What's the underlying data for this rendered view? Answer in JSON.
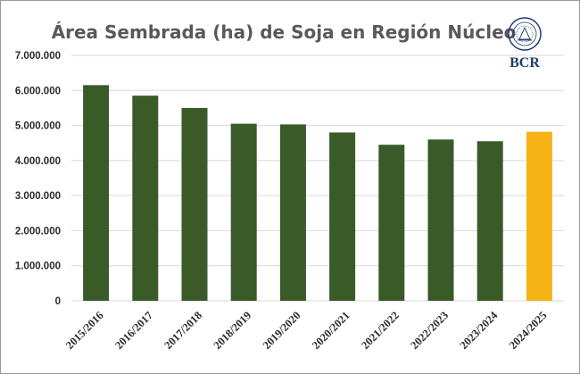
{
  "colors": {
    "bar": "#3a5a28",
    "highlight": "#f5b315",
    "logo": "#1f3b73"
  },
  "logo": {
    "text": "BCR",
    "icon": "bcr-seal-icon"
  },
  "chart_data": {
    "type": "bar",
    "title": "Área Sembrada (ha) de Soja en Región Núcleo",
    "xlabel": "",
    "ylabel": "",
    "ylim": [
      0,
      7000000
    ],
    "grid": true,
    "legend": "none",
    "yticks": [
      {
        "value": 0,
        "label": "0"
      },
      {
        "value": 1000000,
        "label": "1.000.000"
      },
      {
        "value": 2000000,
        "label": "2.000.000"
      },
      {
        "value": 3000000,
        "label": "3.000.000"
      },
      {
        "value": 4000000,
        "label": "4.000.000"
      },
      {
        "value": 5000000,
        "label": "5.000.000"
      },
      {
        "value": 6000000,
        "label": "6.000.000"
      },
      {
        "value": 7000000,
        "label": "7.000.000"
      }
    ],
    "categories": [
      "2015/2016",
      "2016/2017",
      "2017/2018",
      "2018/2019",
      "2019/2020",
      "2020/2021",
      "2021/2022",
      "2022/2023",
      "2023/2024",
      "2024/2025"
    ],
    "values": [
      6150000,
      5850000,
      5500000,
      5050000,
      5030000,
      4800000,
      4450000,
      4600000,
      4550000,
      4820000
    ],
    "highlight_categories": [
      "2024/2025"
    ]
  }
}
